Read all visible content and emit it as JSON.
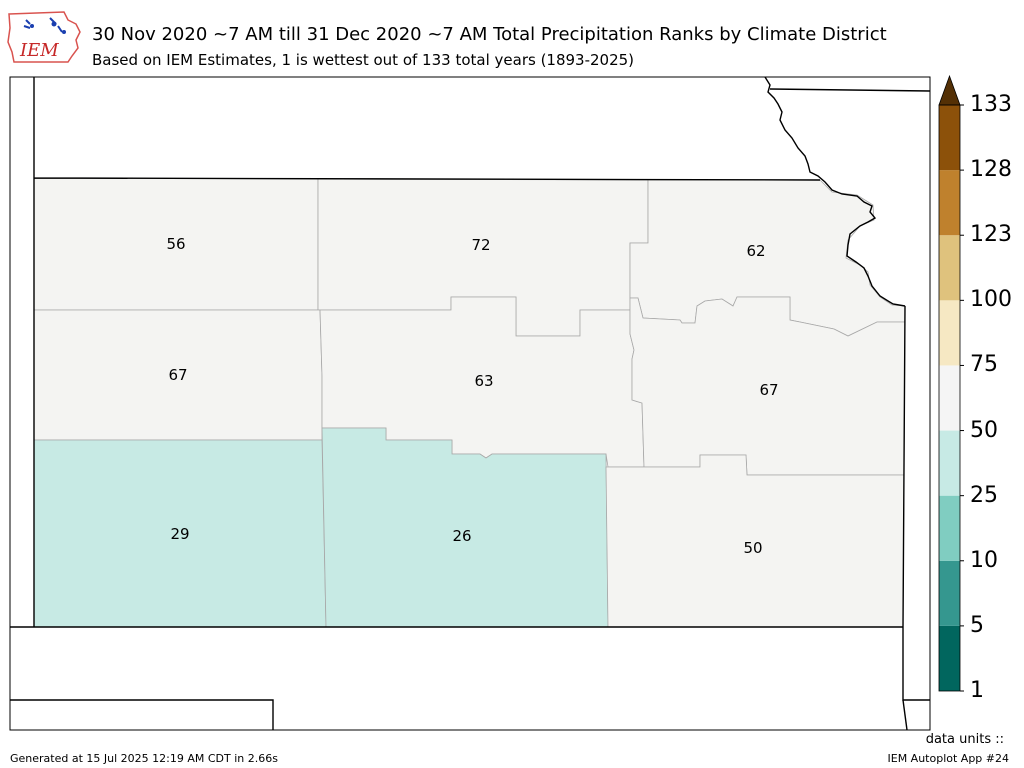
{
  "header": {
    "title": "30 Nov 2020 ~7 AM till 31 Dec 2020 ~7 AM Total Precipitation Ranks by Climate District",
    "subtitle": "Based on IEM Estimates, 1 is wettest out of 133 total years (1893-2025)",
    "logo_text": "IEM"
  },
  "districts": [
    {
      "label": "56",
      "fill": "#f4f4f2"
    },
    {
      "label": "72",
      "fill": "#f4f4f2"
    },
    {
      "label": "62",
      "fill": "#f4f4f2"
    },
    {
      "label": "67",
      "fill": "#f4f4f2"
    },
    {
      "label": "63",
      "fill": "#f4f4f2"
    },
    {
      "label": "67",
      "fill": "#f4f4f2"
    },
    {
      "label": "29",
      "fill": "#c7eae4"
    },
    {
      "label": "26",
      "fill": "#c7eae4"
    },
    {
      "label": "50",
      "fill": "#f4f4f2"
    }
  ],
  "colorbar": {
    "levels": [
      "1",
      "5",
      "10",
      "25",
      "50",
      "75",
      "100",
      "123",
      "128",
      "133"
    ],
    "colors": [
      "#01665e",
      "#35978f",
      "#80cdc1",
      "#c7eae5",
      "#f5f5f5",
      "#f6e8c3",
      "#dfc27d",
      "#bf812d",
      "#8c510a"
    ],
    "extend_color": "#543005"
  },
  "footer": {
    "generated": "Generated at 15 Jul 2025 12:19 AM CDT in 2.66s",
    "app": "IEM Autoplot App #24",
    "units": "data units ::"
  }
}
